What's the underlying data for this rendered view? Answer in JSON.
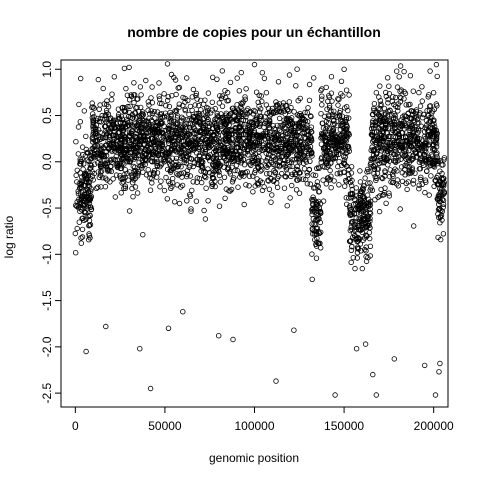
{
  "chart_data": {
    "type": "scatter",
    "title": "nombre de copies pour un échantillon",
    "xlabel": "genomic position",
    "ylabel": "log ratio",
    "xlim": [
      -8000,
      208000
    ],
    "ylim": [
      -2.65,
      1.1
    ],
    "x_ticks": [
      0,
      50000,
      100000,
      150000,
      200000
    ],
    "x_tick_labels": [
      "0",
      "50000",
      "100000",
      "150000",
      "200000"
    ],
    "y_ticks": [
      -2.5,
      -2.0,
      -1.5,
      -1.0,
      -0.5,
      0.0,
      0.5,
      1.0
    ],
    "y_tick_labels": [
      "-2.5",
      "-2.0",
      "-1.5",
      "-1.0",
      "-0.5",
      "0.0",
      "0.5",
      "1.0"
    ],
    "grid": false,
    "marker": "open-circle",
    "segments": [
      {
        "x": [
          0,
          9000
        ],
        "mean": -0.32
      },
      {
        "x": [
          9000,
          132000
        ],
        "mean": 0.22
      },
      {
        "x": [
          132000,
          137000
        ],
        "mean": -0.55
      },
      {
        "x": [
          137000,
          153000
        ],
        "mean": 0.22
      },
      {
        "x": [
          153000,
          165000
        ],
        "mean": -0.6
      },
      {
        "x": [
          165000,
          202000
        ],
        "mean": 0.22
      },
      {
        "x": [
          202000,
          206000
        ],
        "mean": -0.3
      }
    ],
    "points": [
      [
        42000,
        -2.45
      ],
      [
        112000,
        -2.37
      ],
      [
        145000,
        -2.52
      ],
      [
        168000,
        -2.52
      ],
      [
        201000,
        -2.52
      ],
      [
        203000,
        -2.27
      ],
      [
        203500,
        -2.18
      ],
      [
        178000,
        -2.13
      ],
      [
        166000,
        -2.3
      ],
      [
        195000,
        -2.2
      ],
      [
        36000,
        -2.02
      ],
      [
        6000,
        -2.05
      ],
      [
        17000,
        -1.78
      ],
      [
        52000,
        -1.8
      ],
      [
        80000,
        -1.88
      ],
      [
        122000,
        -1.82
      ],
      [
        157000,
        -2.02
      ],
      [
        162000,
        -1.97
      ],
      [
        60000,
        -1.62
      ],
      [
        88000,
        -1.92
      ],
      [
        3000,
        0.9
      ],
      [
        2000,
        0.62
      ],
      [
        5000,
        0.55
      ],
      [
        30000,
        1.02
      ],
      [
        150000,
        1.0
      ],
      [
        143000,
        0.92
      ],
      [
        187000,
        0.93
      ],
      [
        201500,
        1.05
      ],
      [
        198000,
        0.98
      ],
      [
        100000,
        1.05
      ]
    ]
  }
}
